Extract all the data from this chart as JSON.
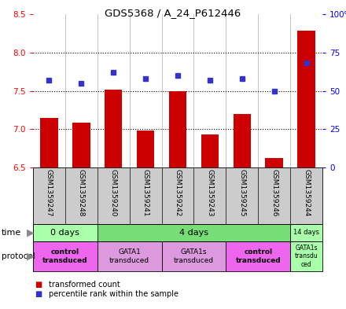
{
  "title": "GDS5368 / A_24_P612446",
  "samples": [
    "GSM1359247",
    "GSM1359248",
    "GSM1359240",
    "GSM1359241",
    "GSM1359242",
    "GSM1359243",
    "GSM1359245",
    "GSM1359246",
    "GSM1359244"
  ],
  "transformed_counts": [
    7.15,
    7.08,
    7.52,
    6.98,
    7.5,
    6.93,
    7.2,
    6.62,
    8.28
  ],
  "percentile_ranks": [
    57,
    55,
    62,
    58,
    60,
    57,
    58,
    50,
    68
  ],
  "ylim": [
    6.5,
    8.5
  ],
  "yticks_left": [
    6.5,
    7.0,
    7.5,
    8.0,
    8.5
  ],
  "yticks_right": [
    0,
    25,
    50,
    75,
    100
  ],
  "right_ylabels": [
    "0",
    "25",
    "50",
    "75",
    "100%"
  ],
  "bar_color": "#cc0000",
  "dot_color": "#3333cc",
  "background_color": "#ffffff",
  "plot_bg": "#ffffff",
  "time_groups": [
    {
      "label": "0 days",
      "start": 0,
      "end": 2,
      "color": "#aaffaa"
    },
    {
      "label": "4 days",
      "start": 2,
      "end": 8,
      "color": "#77dd77"
    },
    {
      "label": "14 days",
      "start": 8,
      "end": 9,
      "color": "#aaffaa"
    }
  ],
  "protocol_groups": [
    {
      "label": "control\ntransduced",
      "start": 0,
      "end": 2,
      "color": "#ee66ee",
      "bold": true
    },
    {
      "label": "GATA1\ntransduced",
      "start": 2,
      "end": 4,
      "color": "#dd99dd",
      "bold": false
    },
    {
      "label": "GATA1s\ntransduced",
      "start": 4,
      "end": 6,
      "color": "#dd99dd",
      "bold": false
    },
    {
      "label": "control\ntransduced",
      "start": 6,
      "end": 8,
      "color": "#ee66ee",
      "bold": true
    },
    {
      "label": "GATA1s\ntransdu\nced",
      "start": 8,
      "end": 9,
      "color": "#aaffaa",
      "bold": false
    }
  ],
  "legend_items": [
    {
      "color": "#cc0000",
      "label": "transformed count"
    },
    {
      "color": "#3333cc",
      "label": "percentile rank within the sample"
    }
  ]
}
